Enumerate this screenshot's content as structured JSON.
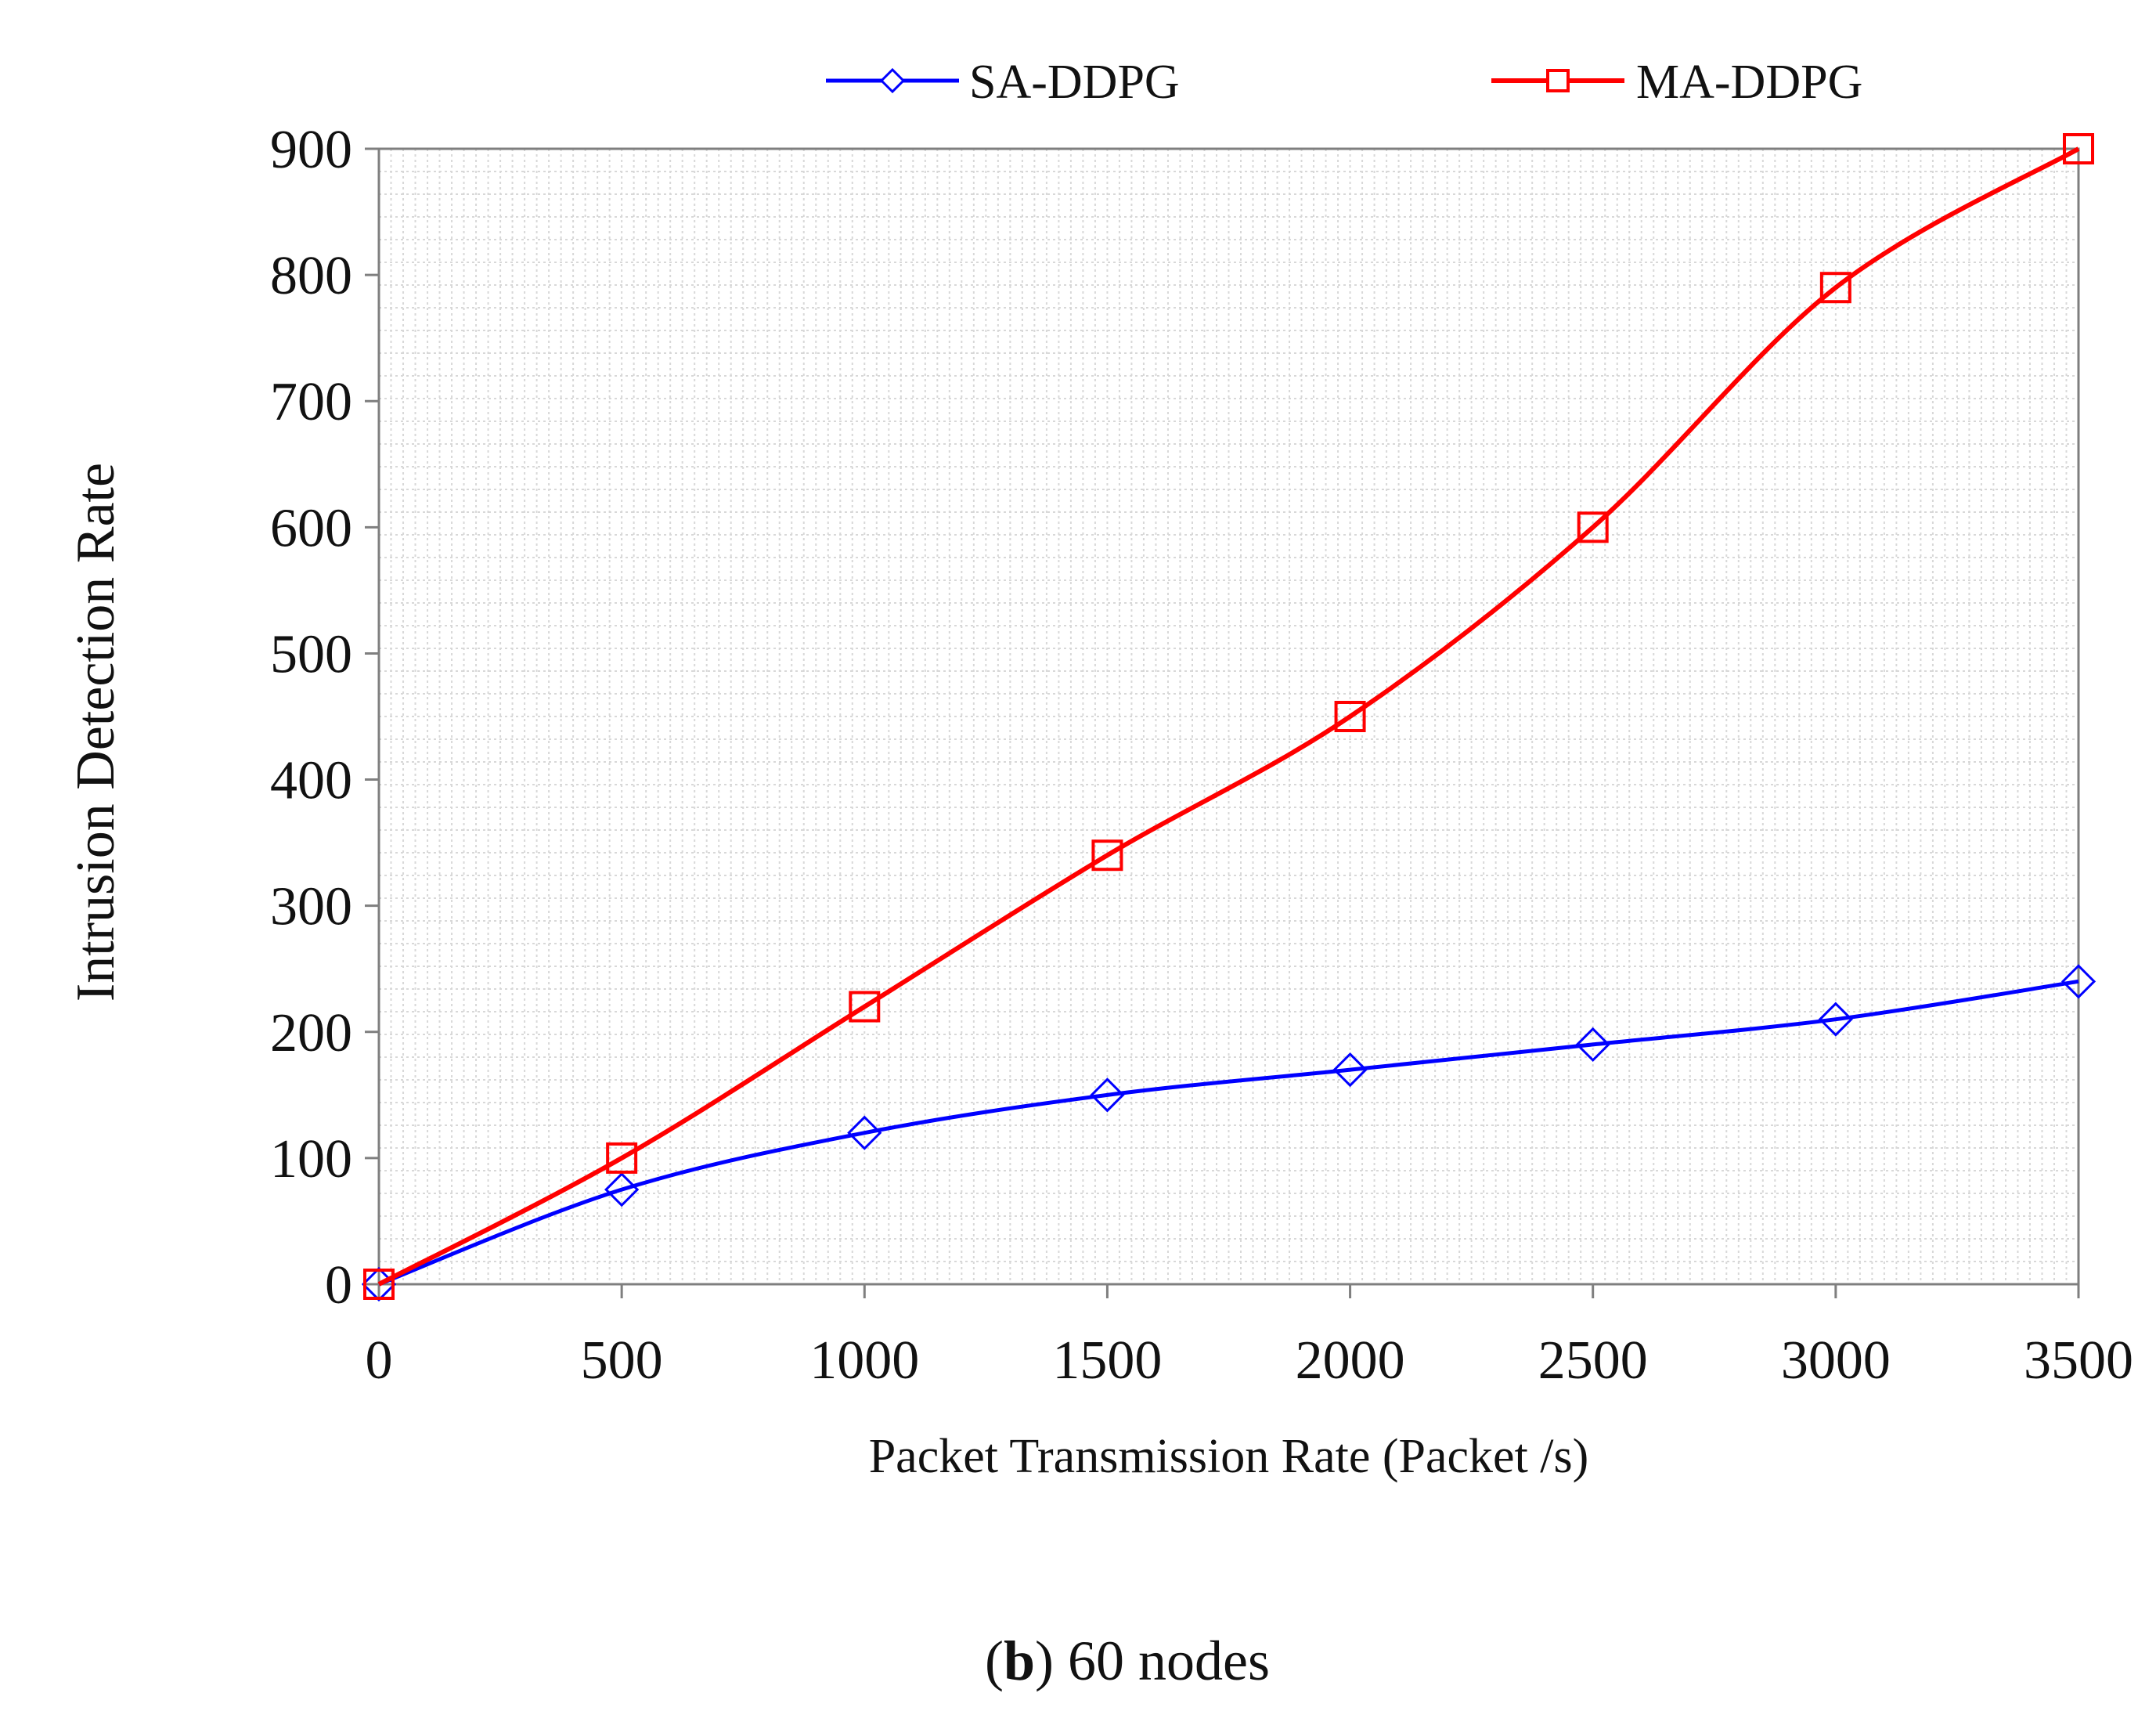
{
  "caption": {
    "letter": "b",
    "text": " 60 nodes"
  },
  "chart_data": {
    "type": "line",
    "xlabel": "Packet Transmission Rate (Packet /s)",
    "ylabel": "Intrusion Detection Rate",
    "x": [
      0,
      500,
      1000,
      1500,
      2000,
      2500,
      3000,
      3500
    ],
    "xticks": [
      "0",
      "500",
      "1000",
      "1500",
      "2000",
      "2500",
      "3000",
      "3500"
    ],
    "yticks": [
      "0",
      "100",
      "200",
      "300",
      "400",
      "500",
      "600",
      "700",
      "800",
      "900"
    ],
    "xlim": [
      0,
      3500
    ],
    "ylim": [
      0,
      900
    ],
    "grid": true,
    "legend_position": "top",
    "series": [
      {
        "name": "SA-DDPG",
        "color": "#0000ff",
        "marker": "diamond",
        "values": [
          0,
          75,
          120,
          150,
          170,
          190,
          210,
          240
        ]
      },
      {
        "name": "MA-DDPG",
        "color": "#ff0000",
        "marker": "square",
        "values": [
          0,
          100,
          220,
          340,
          450,
          600,
          790,
          900
        ]
      }
    ]
  }
}
